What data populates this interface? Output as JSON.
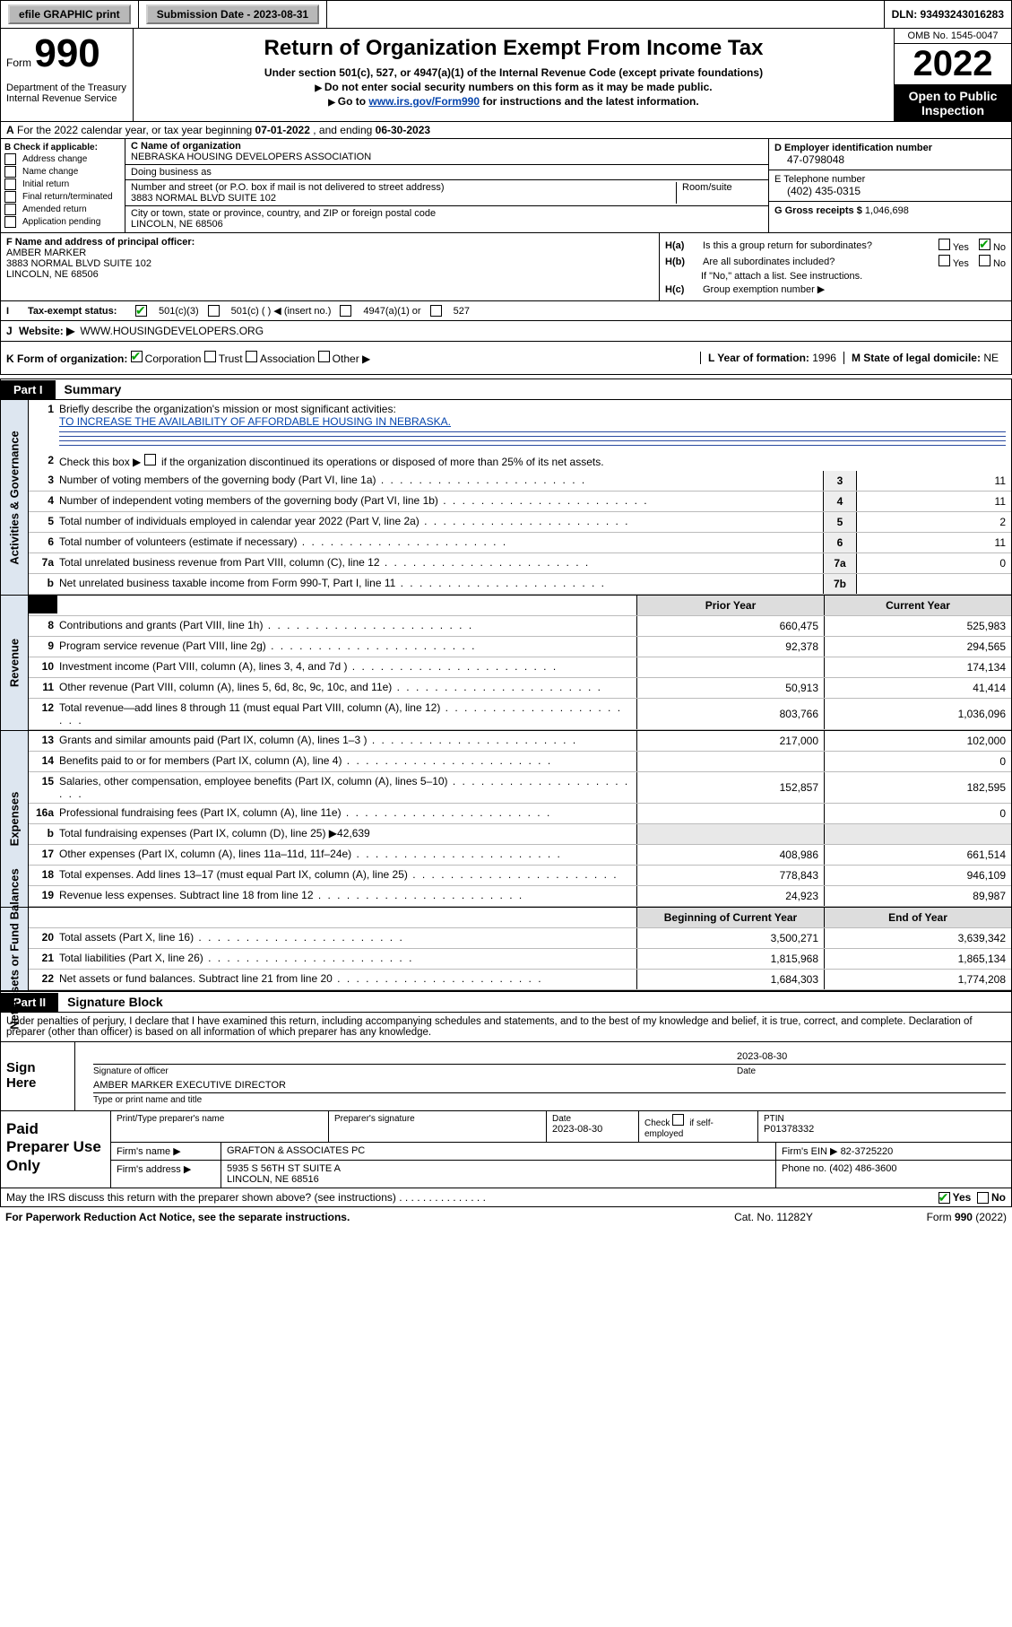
{
  "topbar": {
    "efile_label": "efile GRAPHIC print",
    "submission_label": "Submission Date - 2023-08-31",
    "dln_label": "DLN: 93493243016283"
  },
  "header": {
    "form_word": "Form",
    "form_number": "990",
    "dept": "Department of the Treasury\nInternal Revenue Service",
    "title": "Return of Organization Exempt From Income Tax",
    "sub1": "Under section 501(c), 527, or 4947(a)(1) of the Internal Revenue Code (except private foundations)",
    "sub2": "Do not enter social security numbers on this form as it may be made public.",
    "sub3_pre": "Go to ",
    "sub3_link": "www.irs.gov/Form990",
    "sub3_post": " for instructions and the latest information.",
    "omb": "OMB No. 1545-0047",
    "year": "2022",
    "open": "Open to Public Inspection"
  },
  "A": {
    "text_pre": "For the 2022 calendar year, or tax year beginning ",
    "begin": "07-01-2022",
    "mid": " , and ending ",
    "end": "06-30-2023"
  },
  "B": {
    "label": "B Check if applicable:",
    "items": [
      "Address change",
      "Name change",
      "Initial return",
      "Final return/terminated",
      "Amended return",
      "Application pending"
    ]
  },
  "C": {
    "name_label": "C Name of organization",
    "name": "NEBRASKA HOUSING DEVELOPERS ASSOCIATION",
    "dba_label": "Doing business as",
    "dba": "",
    "street_label": "Number and street (or P.O. box if mail is not delivered to street address)",
    "room_label": "Room/suite",
    "street": "3883 NORMAL BLVD SUITE 102",
    "city_label": "City or town, state or province, country, and ZIP or foreign postal code",
    "city": "LINCOLN, NE  68506"
  },
  "D": {
    "label": "D Employer identification number",
    "value": "47-0798048"
  },
  "E": {
    "label": "E Telephone number",
    "value": "(402) 435-0315"
  },
  "G": {
    "label": "G Gross receipts $",
    "value": "1,046,698"
  },
  "F": {
    "label": "F  Name and address of principal officer:",
    "name": "AMBER MARKER",
    "street": "3883 NORMAL BLVD SUITE 102",
    "city": "LINCOLN, NE  68506"
  },
  "H": {
    "a_label": "H(a)",
    "a_text": "Is this a group return for subordinates?",
    "a_yes": "Yes",
    "a_no": "No",
    "b_label": "H(b)",
    "b_text": "Are all subordinates included?",
    "b_note": "If \"No,\" attach a list. See instructions.",
    "c_label": "H(c)",
    "c_text": "Group exemption number ▶"
  },
  "I": {
    "label": "Tax-exempt status:",
    "o1": "501(c)(3)",
    "o2": "501(c) (   ) ◀ (insert no.)",
    "o3": "4947(a)(1) or",
    "o4": "527"
  },
  "J": {
    "label": "Website: ▶",
    "value": "WWW.HOUSINGDEVELOPERS.ORG"
  },
  "K": {
    "label": "K Form of organization:",
    "o1": "Corporation",
    "o2": "Trust",
    "o3": "Association",
    "o4": "Other ▶"
  },
  "L": {
    "label": "L Year of formation:",
    "value": "1996"
  },
  "M": {
    "label": "M State of legal domicile:",
    "value": "NE"
  },
  "partI": {
    "tag": "Part I",
    "title": "Summary",
    "section_labels": {
      "gov": "Activities & Governance",
      "rev": "Revenue",
      "exp": "Expenses",
      "net": "Net Assets or Fund Balances"
    },
    "line1_label": "Briefly describe the organization's mission or most significant activities:",
    "line1_value": "TO INCREASE THE AVAILABILITY OF AFFORDABLE HOUSING IN NEBRASKA.",
    "line2": "Check this box ▶       if the organization discontinued its operations or disposed of more than 25% of its net assets.",
    "lines_single": [
      {
        "n": "3",
        "t": "Number of voting members of the governing body (Part VI, line 1a)",
        "box": "3",
        "v": "11"
      },
      {
        "n": "4",
        "t": "Number of independent voting members of the governing body (Part VI, line 1b)",
        "box": "4",
        "v": "11"
      },
      {
        "n": "5",
        "t": "Total number of individuals employed in calendar year 2022 (Part V, line 2a)",
        "box": "5",
        "v": "2"
      },
      {
        "n": "6",
        "t": "Total number of volunteers (estimate if necessary)",
        "box": "6",
        "v": "11"
      },
      {
        "n": "7a",
        "t": "Total unrelated business revenue from Part VIII, column (C), line 12",
        "box": "7a",
        "v": "0"
      },
      {
        "n": "b",
        "t": "Net unrelated business taxable income from Form 990-T, Part I, line 11",
        "box": "7b",
        "v": ""
      }
    ],
    "col_prior": "Prior Year",
    "col_current": "Current Year",
    "col_begin": "Beginning of Current Year",
    "col_end": "End of Year",
    "revenue": [
      {
        "n": "8",
        "t": "Contributions and grants (Part VIII, line 1h)",
        "p": "660,475",
        "c": "525,983"
      },
      {
        "n": "9",
        "t": "Program service revenue (Part VIII, line 2g)",
        "p": "92,378",
        "c": "294,565"
      },
      {
        "n": "10",
        "t": "Investment income (Part VIII, column (A), lines 3, 4, and 7d )",
        "p": "",
        "c": "174,134"
      },
      {
        "n": "11",
        "t": "Other revenue (Part VIII, column (A), lines 5, 6d, 8c, 9c, 10c, and 11e)",
        "p": "50,913",
        "c": "41,414"
      },
      {
        "n": "12",
        "t": "Total revenue—add lines 8 through 11 (must equal Part VIII, column (A), line 12)",
        "p": "803,766",
        "c": "1,036,096"
      }
    ],
    "expenses": [
      {
        "n": "13",
        "t": "Grants and similar amounts paid (Part IX, column (A), lines 1–3 )",
        "p": "217,000",
        "c": "102,000"
      },
      {
        "n": "14",
        "t": "Benefits paid to or for members (Part IX, column (A), line 4)",
        "p": "",
        "c": "0"
      },
      {
        "n": "15",
        "t": "Salaries, other compensation, employee benefits (Part IX, column (A), lines 5–10)",
        "p": "152,857",
        "c": "182,595"
      },
      {
        "n": "16a",
        "t": "Professional fundraising fees (Part IX, column (A), line 11e)",
        "p": "",
        "c": "0"
      },
      {
        "n": "b",
        "t": "Total fundraising expenses (Part IX, column (D), line 25) ▶42,639",
        "p": null,
        "c": null,
        "shade": true
      },
      {
        "n": "17",
        "t": "Other expenses (Part IX, column (A), lines 11a–11d, 11f–24e)",
        "p": "408,986",
        "c": "661,514"
      },
      {
        "n": "18",
        "t": "Total expenses. Add lines 13–17 (must equal Part IX, column (A), line 25)",
        "p": "778,843",
        "c": "946,109"
      },
      {
        "n": "19",
        "t": "Revenue less expenses. Subtract line 18 from line 12",
        "p": "24,923",
        "c": "89,987"
      }
    ],
    "net": [
      {
        "n": "20",
        "t": "Total assets (Part X, line 16)",
        "p": "3,500,271",
        "c": "3,639,342"
      },
      {
        "n": "21",
        "t": "Total liabilities (Part X, line 26)",
        "p": "1,815,968",
        "c": "1,865,134"
      },
      {
        "n": "22",
        "t": "Net assets or fund balances. Subtract line 21 from line 20",
        "p": "1,684,303",
        "c": "1,774,208"
      }
    ]
  },
  "partII": {
    "tag": "Part II",
    "title": "Signature Block",
    "declare": "Under penalties of perjury, I declare that I have examined this return, including accompanying schedules and statements, and to the best of my knowledge and belief, it is true, correct, and complete. Declaration of preparer (other than officer) is based on all information of which preparer has any knowledge.",
    "sign_here": "Sign Here",
    "sig_officer_label": "Signature of officer",
    "sig_date_label": "Date",
    "sig_date": "2023-08-30",
    "sig_name": "AMBER MARKER  EXECUTIVE DIRECTOR",
    "sig_name_label": "Type or print name and title",
    "paid": "Paid Preparer Use Only",
    "p_name_label": "Print/Type preparer's name",
    "p_sig_label": "Preparer's signature",
    "p_date_label": "Date",
    "p_date": "2023-08-30",
    "p_check_label": "Check       if self-employed",
    "p_ptin_label": "PTIN",
    "p_ptin": "P01378332",
    "firm_name_label": "Firm's name    ▶",
    "firm_name": "GRAFTON & ASSOCIATES PC",
    "firm_ein_label": "Firm's EIN ▶",
    "firm_ein": "82-3725220",
    "firm_addr_label": "Firm's address ▶",
    "firm_addr1": "5935 S 56TH ST SUITE A",
    "firm_addr2": "LINCOLN, NE  68516",
    "firm_phone_label": "Phone no.",
    "firm_phone": "(402) 486-3600",
    "discuss": "May the IRS discuss this return with the preparer shown above? (see instructions)",
    "discuss_yes": "Yes",
    "discuss_no": "No"
  },
  "footer": {
    "pra": "For Paperwork Reduction Act Notice, see the separate instructions.",
    "cat": "Cat. No. 11282Y",
    "form": "Form 990 (2022)"
  }
}
